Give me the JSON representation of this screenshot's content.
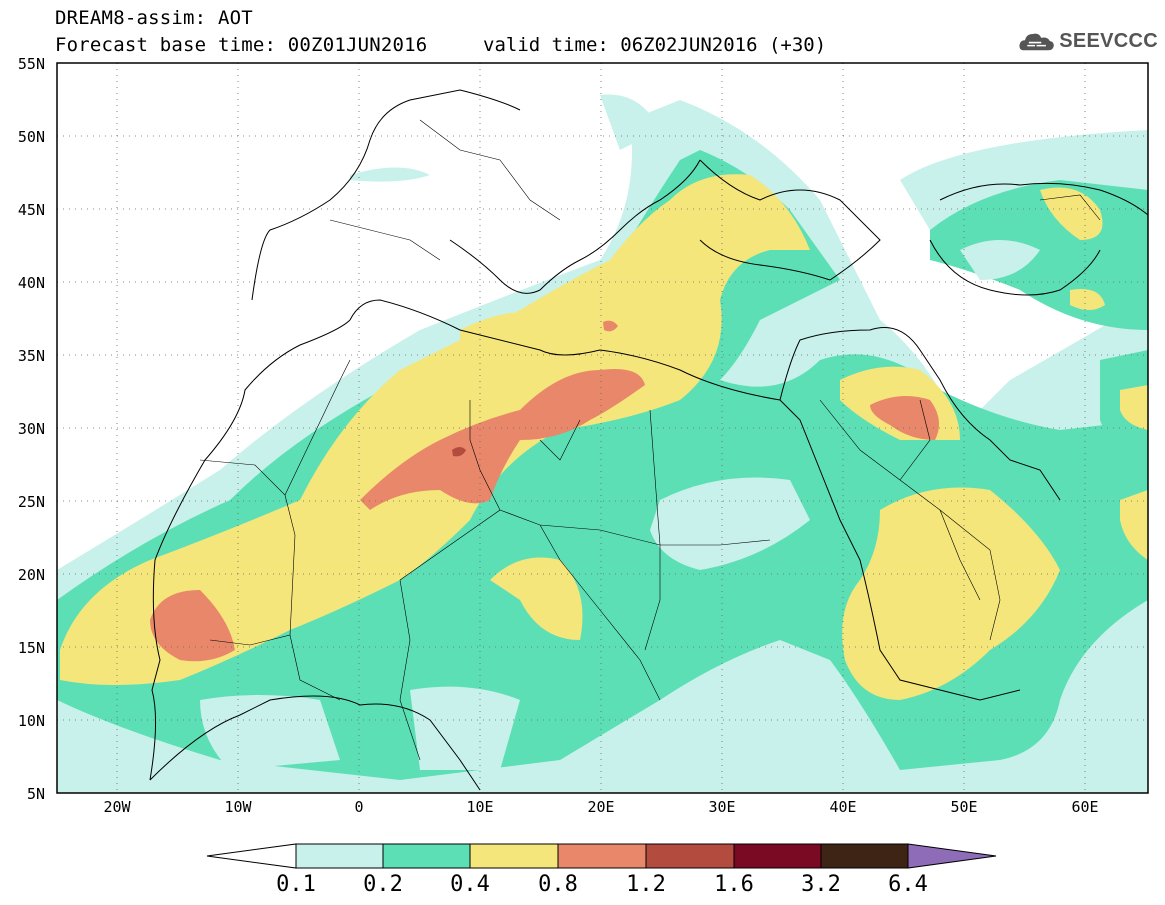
{
  "header": {
    "line1": "DREAM8-assim: AOT",
    "line2": "Forecast base time: 00Z01JUN2016",
    "line3": "valid time: 06Z02JUN2016 (+30)"
  },
  "logo": {
    "text": "SEEVCCC",
    "icon": "cloud-icon"
  },
  "map": {
    "lat_labels": [
      "55N",
      "50N",
      "45N",
      "40N",
      "35N",
      "30N",
      "25N",
      "20N",
      "15N",
      "10N",
      "5N"
    ],
    "lon_labels": [
      "20W",
      "10W",
      "0",
      "10E",
      "20E",
      "30E",
      "40E",
      "50E",
      "60E"
    ],
    "lon_range": [
      -25,
      65
    ],
    "lat_range": [
      5,
      55
    ],
    "grid": "dotted"
  },
  "colorbar": {
    "labels": [
      "0.1",
      "0.2",
      "0.4",
      "0.8",
      "1.2",
      "1.6",
      "3.2",
      "6.4"
    ],
    "colors": [
      "#ffffff",
      "#c7f1ea",
      "#5ddfb6",
      "#f4e67a",
      "#e8876a",
      "#b34b3e",
      "#7a0a24",
      "#3d2414",
      "#8e6cb8"
    ]
  }
}
